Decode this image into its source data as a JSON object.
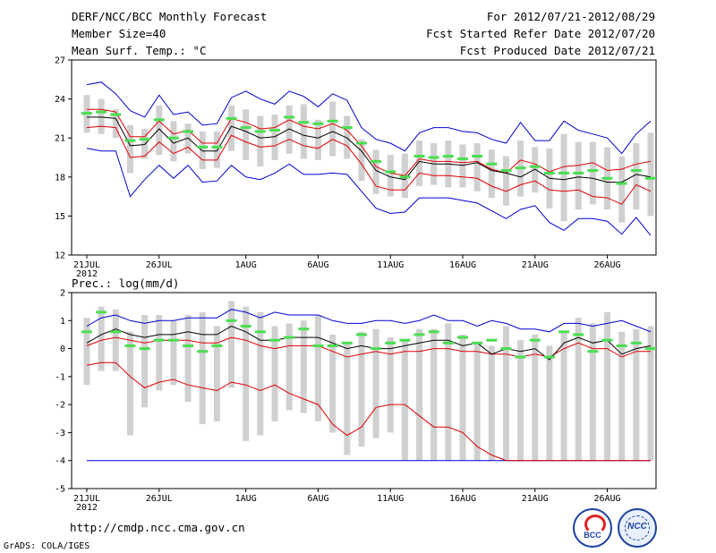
{
  "header": {
    "title": "DERF/NCC/BCC Monthly Forecast",
    "member_size": "Member Size=40",
    "variable": "Mean Surf. Temp.: °C",
    "forecast_period": "For 2012/07/21-2012/08/29",
    "start_date": "Fcst Started Refer Date 2012/07/20",
    "produced_date": "Fcst Produced Date 2012/07/21"
  },
  "footer": {
    "url": "http://cmdp.ncc.cma.gov.cn",
    "credit": "GrADS: COLA/IGES",
    "logo1_text": "BCC",
    "logo2_text": "NCC"
  },
  "colors": {
    "ensemble_mean": "#000000",
    "std_band": "#e00000",
    "extremes": "#0000d0",
    "box": "#d0d0d0",
    "obs_marker": "#4ade50"
  },
  "chart_data": [
    {
      "type": "line",
      "title": "Mean Surf. Temp.: °C",
      "ylim": [
        12,
        27
      ],
      "yticks": [
        12,
        15,
        18,
        21,
        24,
        27
      ],
      "ytick_labels": [
        "12",
        "15",
        "18",
        "21",
        "24",
        "27"
      ],
      "days": [
        1,
        2,
        3,
        4,
        5,
        6,
        7,
        8,
        9,
        10,
        11,
        12,
        13,
        14,
        15,
        16,
        17,
        18,
        19,
        20,
        21,
        22,
        23,
        24,
        25,
        26,
        27,
        28,
        29,
        30,
        31,
        32,
        33,
        34,
        35,
        36,
        37,
        38,
        39,
        40
      ],
      "xtick_days": [
        1,
        6,
        12,
        17,
        22,
        27,
        32,
        37
      ],
      "xtick_labels": [
        "21JUL",
        "26JUL",
        "1AUG",
        "6AUG",
        "11AUG",
        "16AUG",
        "21AUG",
        "26AUG"
      ],
      "xtick_sub": "2012",
      "series": [
        {
          "name": "mean",
          "values": [
            22.6,
            22.6,
            22.5,
            20.4,
            20.5,
            21.7,
            20.6,
            21.0,
            20.0,
            20.0,
            21.9,
            21.5,
            21.0,
            21.1,
            21.7,
            21.2,
            21.0,
            21.5,
            21.0,
            20.0,
            18.5,
            18.0,
            17.8,
            19.2,
            19.0,
            19.0,
            18.9,
            19.1,
            18.5,
            18.3,
            18.0,
            18.6,
            17.9,
            17.8,
            18.0,
            17.9,
            17.6,
            17.6,
            18.2,
            18.0
          ]
        },
        {
          "name": "upper",
          "values": [
            23.2,
            23.2,
            23.0,
            21.1,
            21.1,
            22.3,
            21.3,
            21.6,
            20.6,
            20.6,
            22.5,
            22.2,
            21.7,
            21.8,
            22.4,
            21.9,
            21.7,
            22.1,
            21.6,
            20.4,
            18.8,
            18.3,
            18.1,
            19.4,
            19.2,
            19.2,
            19.1,
            19.2,
            18.6,
            18.3,
            19.3,
            19.0,
            18.4,
            18.8,
            18.9,
            19.1,
            18.5,
            18.6,
            19.0,
            19.2
          ]
        },
        {
          "name": "lower",
          "values": [
            21.8,
            21.9,
            21.8,
            19.5,
            19.6,
            20.7,
            19.8,
            20.3,
            19.3,
            19.3,
            21.2,
            20.7,
            20.3,
            20.4,
            20.9,
            20.4,
            20.2,
            20.9,
            20.4,
            19.0,
            17.3,
            17.0,
            17.0,
            18.3,
            18.1,
            18.1,
            18.0,
            17.9,
            17.3,
            16.9,
            17.4,
            17.7,
            17.0,
            16.9,
            17.0,
            16.5,
            16.4,
            15.9,
            17.4,
            16.9
          ]
        },
        {
          "name": "max",
          "values": [
            25.1,
            25.3,
            24.4,
            23.1,
            22.6,
            24.3,
            22.8,
            23.0,
            22.0,
            22.1,
            24.1,
            24.6,
            24.0,
            23.6,
            24.6,
            24.2,
            23.4,
            24.4,
            23.9,
            21.8,
            20.9,
            20.6,
            20.0,
            21.4,
            21.8,
            21.8,
            21.5,
            21.4,
            20.9,
            20.6,
            22.2,
            20.8,
            20.8,
            22.3,
            21.6,
            21.3,
            21.0,
            19.8,
            21.3,
            22.3
          ]
        },
        {
          "name": "min",
          "values": [
            20.2,
            20.0,
            20.0,
            16.5,
            17.8,
            18.9,
            17.9,
            18.9,
            17.6,
            17.7,
            18.9,
            18.0,
            17.8,
            18.3,
            19.0,
            18.2,
            18.2,
            18.3,
            18.2,
            16.9,
            15.6,
            15.2,
            15.3,
            16.4,
            16.4,
            16.4,
            16.2,
            16.0,
            15.4,
            14.8,
            15.5,
            15.8,
            14.5,
            13.9,
            14.8,
            14.8,
            14.6,
            13.6,
            14.9,
            13.5
          ]
        },
        {
          "name": "box_top",
          "values": [
            24.3,
            24.0,
            23.2,
            22.0,
            21.7,
            23.5,
            22.3,
            22.1,
            21.5,
            21.5,
            23.5,
            23.2,
            22.7,
            22.8,
            23.5,
            23.6,
            22.4,
            23.8,
            22.7,
            20.9,
            20.1,
            19.7,
            19.8,
            20.8,
            20.6,
            20.8,
            20.5,
            20.6,
            20.1,
            19.6,
            20.8,
            20.3,
            20.2,
            21.3,
            20.7,
            20.7,
            20.3,
            19.6,
            20.6,
            21.4
          ]
        },
        {
          "name": "box_bottom",
          "values": [
            21.4,
            21.3,
            21.0,
            18.3,
            19.4,
            19.7,
            19.2,
            19.8,
            18.6,
            18.7,
            20.0,
            19.3,
            18.8,
            19.3,
            19.8,
            19.4,
            19.3,
            19.6,
            19.4,
            17.7,
            16.7,
            16.5,
            16.4,
            17.3,
            17.4,
            17.2,
            17.2,
            16.9,
            16.4,
            15.8,
            16.5,
            16.8,
            15.6,
            14.6,
            15.5,
            15.9,
            15.5,
            14.5,
            15.5,
            15.0
          ]
        },
        {
          "name": "observed",
          "values": [
            22.9,
            23.0,
            22.8,
            20.8,
            20.9,
            22.4,
            21.0,
            21.5,
            20.3,
            20.3,
            22.5,
            21.8,
            21.5,
            21.6,
            22.6,
            22.2,
            22.1,
            22.3,
            21.8,
            20.6,
            19.2,
            18.4,
            18.0,
            19.6,
            19.5,
            19.6,
            19.4,
            19.6,
            19.0,
            18.5,
            18.7,
            18.8,
            18.3,
            18.3,
            18.3,
            18.5,
            17.9,
            17.5,
            18.5,
            17.9
          ]
        }
      ]
    },
    {
      "type": "line",
      "title": "Prec.: log(mm/d)",
      "ylim": [
        -5,
        2
      ],
      "yticks": [
        -5,
        -4,
        -3,
        -2,
        -1,
        0,
        1,
        2
      ],
      "ytick_labels": [
        "-5",
        "-4",
        "-3",
        "-2",
        "-1",
        "0",
        "1",
        "2"
      ],
      "days": [
        1,
        2,
        3,
        4,
        5,
        6,
        7,
        8,
        9,
        10,
        11,
        12,
        13,
        14,
        15,
        16,
        17,
        18,
        19,
        20,
        21,
        22,
        23,
        24,
        25,
        26,
        27,
        28,
        29,
        30,
        31,
        32,
        33,
        34,
        35,
        36,
        37,
        38,
        39,
        40
      ],
      "xtick_days": [
        1,
        6,
        12,
        17,
        22,
        27,
        32,
        37
      ],
      "xtick_labels": [
        "21JUL",
        "26JUL",
        "1AUG",
        "6AUG",
        "11AUG",
        "16AUG",
        "21AUG",
        "26AUG"
      ],
      "xtick_sub": "2012",
      "series": [
        {
          "name": "mean",
          "values": [
            0.2,
            0.5,
            0.7,
            0.5,
            0.4,
            0.5,
            0.5,
            0.6,
            0.5,
            0.5,
            0.8,
            0.6,
            0.3,
            0.3,
            0.4,
            0.4,
            0.4,
            0.2,
            0.0,
            0.1,
            0.0,
            0.0,
            0.1,
            0.2,
            0.3,
            0.3,
            0.1,
            0.2,
            -0.2,
            0.0,
            -0.1,
            0.0,
            -0.4,
            0.2,
            0.4,
            0.2,
            0.3,
            -0.2,
            0.0,
            0.1
          ]
        },
        {
          "name": "upper",
          "values": [
            0.1,
            0.3,
            0.4,
            0.3,
            0.2,
            0.3,
            0.3,
            0.3,
            0.2,
            0.2,
            0.4,
            0.3,
            0.1,
            0.0,
            0.1,
            0.1,
            0.1,
            -0.1,
            -0.3,
            -0.2,
            -0.1,
            -0.2,
            -0.1,
            -0.1,
            0.0,
            0.0,
            -0.1,
            -0.1,
            -0.2,
            -0.2,
            -0.3,
            -0.2,
            -0.3,
            0.0,
            0.2,
            0.0,
            0.0,
            -0.3,
            -0.1,
            -0.1
          ]
        },
        {
          "name": "lower",
          "values": [
            -0.6,
            -0.5,
            -0.5,
            -1.0,
            -1.4,
            -1.2,
            -1.1,
            -1.3,
            -1.4,
            -1.5,
            -1.2,
            -1.3,
            -1.5,
            -1.3,
            -1.6,
            -1.8,
            -2.0,
            -2.7,
            -3.1,
            -2.8,
            -2.1,
            -2.0,
            -2.0,
            -2.4,
            -2.8,
            -2.8,
            -3.0,
            -3.5,
            -3.8,
            -4.0,
            -4.0,
            -4.0,
            -4.0,
            -4.0,
            -4.0,
            -4.0,
            -4.0,
            -4.0,
            -4.0,
            -4.0
          ]
        },
        {
          "name": "max",
          "values": [
            0.8,
            1.1,
            1.2,
            1.0,
            0.9,
            1.0,
            1.0,
            1.1,
            1.1,
            1.1,
            1.4,
            1.3,
            1.1,
            1.3,
            1.2,
            1.2,
            1.2,
            1.0,
            0.9,
            0.9,
            1.0,
            1.0,
            0.9,
            1.0,
            1.2,
            1.0,
            1.0,
            0.8,
            1.0,
            0.9,
            0.7,
            0.7,
            0.6,
            0.9,
            0.9,
            0.8,
            0.9,
            1.0,
            0.8,
            0.6
          ]
        },
        {
          "name": "min",
          "values": [
            -4.0,
            -4.0,
            -4.0,
            -4.0,
            -4.0,
            -4.0,
            -4.0,
            -4.0,
            -4.0,
            -4.0,
            -4.0,
            -4.0,
            -4.0,
            -4.0,
            -4.0,
            -4.0,
            -4.0,
            -4.0,
            -4.0,
            -4.0,
            -4.0,
            -4.0,
            -4.0,
            -4.0,
            -4.0,
            -4.0,
            -4.0,
            -4.0,
            -4.0,
            -4.0,
            -4.0,
            -4.0,
            -4.0,
            -4.0,
            -4.0,
            -4.0,
            -4.0,
            -4.0,
            -4.0,
            -4.0
          ]
        },
        {
          "name": "box_top",
          "values": [
            1.1,
            1.5,
            1.4,
            0.6,
            1.2,
            1.2,
            1.0,
            1.2,
            1.3,
            0.8,
            1.7,
            1.5,
            1.3,
            0.8,
            0.9,
            1.0,
            1.2,
            0.5,
            0.2,
            0.6,
            0.7,
            0.4,
            0.3,
            0.7,
            0.7,
            0.9,
            0.5,
            0.2,
            0.1,
            0.8,
            0.3,
            0.5,
            0.1,
            0.6,
            1.1,
            0.9,
            1.3,
            0.6,
            0.7,
            0.8
          ]
        },
        {
          "name": "box_bottom",
          "values": [
            -1.3,
            -0.8,
            -0.8,
            -3.1,
            -2.1,
            -1.5,
            -1.3,
            -1.9,
            -2.7,
            -2.6,
            -1.4,
            -3.3,
            -3.1,
            -2.6,
            -2.2,
            -2.3,
            -2.6,
            -3.0,
            -3.8,
            -3.5,
            -3.2,
            -3.0,
            -4.0,
            -4.0,
            -4.0,
            -4.0,
            -4.0,
            -4.0,
            -4.0,
            -4.0,
            -4.0,
            -4.0,
            -4.0,
            -4.0,
            -4.0,
            -4.0,
            -4.0,
            -4.0,
            -4.0,
            -4.0
          ]
        },
        {
          "name": "observed",
          "values": [
            0.6,
            1.3,
            0.6,
            0.1,
            0.0,
            0.3,
            0.3,
            0.1,
            -0.1,
            0.1,
            1.0,
            0.8,
            0.6,
            0.3,
            0.4,
            0.7,
            0.1,
            0.1,
            0.2,
            0.5,
            0.0,
            0.2,
            0.3,
            0.5,
            0.6,
            0.2,
            0.4,
            0.2,
            0.3,
            0.0,
            -0.3,
            0.3,
            -0.3,
            0.6,
            0.5,
            -0.1,
            0.3,
            0.1,
            0.2,
            0.0
          ]
        }
      ]
    }
  ]
}
